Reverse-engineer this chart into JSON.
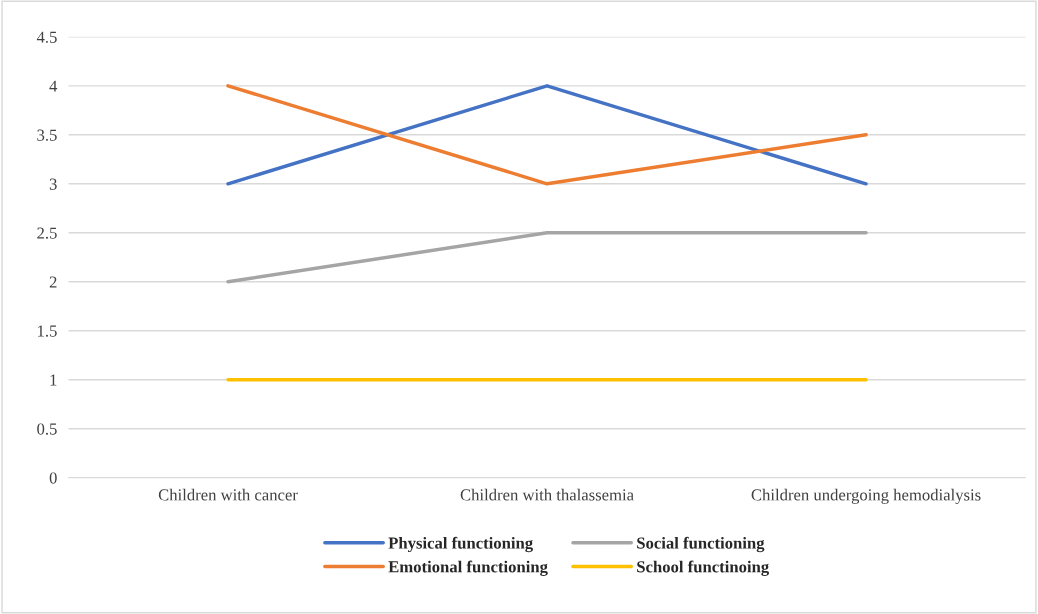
{
  "chart_data": {
    "type": "line",
    "categories": [
      "Children with cancer",
      "Children with thalassemia",
      "Children undergoing hemodialysis"
    ],
    "series": [
      {
        "name": "Physical functioning",
        "color": "#4472c4",
        "values": [
          3,
          4,
          3
        ]
      },
      {
        "name": "Emotional functioning",
        "color": "#ed7d31",
        "values": [
          4,
          3,
          3.5
        ]
      },
      {
        "name": "Social functioning",
        "color": "#a5a5a5",
        "values": [
          2,
          2.5,
          2.5
        ]
      },
      {
        "name": "School functinoing",
        "color": "#ffc000",
        "values": [
          1,
          1,
          1
        ]
      }
    ],
    "ylim": [
      0,
      4.5
    ],
    "yticks": [
      0,
      0.5,
      1,
      1.5,
      2,
      2.5,
      3,
      3.5,
      4,
      4.5
    ],
    "grid": "y",
    "legend": "bottom",
    "marker": "none",
    "line_style": "solid"
  }
}
